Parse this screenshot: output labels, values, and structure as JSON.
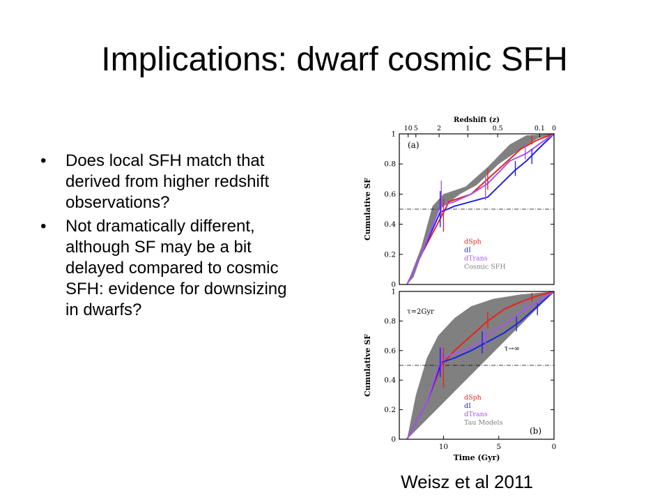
{
  "slide": {
    "title": "Implications: dwarf cosmic SFH",
    "bullet_symbol": "•",
    "bullets": [
      "Does local SFH match that derived from higher redshift observations?",
      "Not dramatically different, although SF may be a bit delayed compared to cosmic SFH: evidence for downsizing in dwarfs?"
    ],
    "caption": "Weisz et al 2011"
  },
  "chart_data": [
    {
      "type": "line",
      "panel_label": "(a)",
      "top_axis_label": "Redshift (z)",
      "top_ticks": [
        {
          "label": "10",
          "time": 13.2
        },
        {
          "label": "5",
          "time": 12.5
        },
        {
          "label": "2",
          "time": 10.4
        },
        {
          "label": "1",
          "time": 7.8
        },
        {
          "label": "0.5",
          "time": 5.1
        },
        {
          "label": "0.1",
          "time": 1.3
        },
        {
          "label": "0",
          "time": 0
        }
      ],
      "xlabel": "",
      "ylabel": "Cumulative SF",
      "xlim": [
        14,
        0
      ],
      "ylim": [
        0,
        1
      ],
      "yticks": [
        0,
        0.2,
        0.4,
        0.6,
        0.8,
        1
      ],
      "reference_line": 0.5,
      "band": {
        "name": "Cosmic SFH",
        "color": "#808080",
        "lower": [
          [
            13.3,
            0
          ],
          [
            12.7,
            0.05
          ],
          [
            11.5,
            0.3
          ],
          [
            10.5,
            0.49
          ],
          [
            8.5,
            0.6
          ],
          [
            7,
            0.66
          ],
          [
            5,
            0.8
          ],
          [
            3,
            0.9
          ],
          [
            1.5,
            0.97
          ],
          [
            0,
            1
          ]
        ],
        "upper": [
          [
            13.3,
            0
          ],
          [
            12,
            0.25
          ],
          [
            11,
            0.52
          ],
          [
            10,
            0.6
          ],
          [
            8,
            0.65
          ],
          [
            6,
            0.78
          ],
          [
            4,
            0.93
          ],
          [
            2.5,
            0.99
          ],
          [
            0,
            1
          ]
        ]
      },
      "series": [
        {
          "name": "dSph",
          "color": "#e8231c",
          "values": [
            [
              13.3,
              0
            ],
            [
              12,
              0.2
            ],
            [
              10.2,
              0.45
            ],
            [
              9.5,
              0.55
            ],
            [
              7.5,
              0.6
            ],
            [
              6,
              0.7
            ],
            [
              4.5,
              0.8
            ],
            [
              3,
              0.9
            ],
            [
              1.5,
              0.96
            ],
            [
              0,
              1
            ]
          ]
        },
        {
          "name": "dI",
          "color": "#1e22e8",
          "values": [
            [
              13.3,
              0
            ],
            [
              12,
              0.2
            ],
            [
              10.3,
              0.48
            ],
            [
              9,
              0.52
            ],
            [
              7.5,
              0.55
            ],
            [
              6,
              0.58
            ],
            [
              3.5,
              0.76
            ],
            [
              2.5,
              0.82
            ],
            [
              1,
              0.93
            ],
            [
              0,
              1
            ]
          ]
        },
        {
          "name": "dTrans",
          "color": "#a455f0",
          "values": [
            [
              13.3,
              0
            ],
            [
              12,
              0.2
            ],
            [
              10.3,
              0.52
            ],
            [
              9,
              0.55
            ],
            [
              7.5,
              0.6
            ],
            [
              6,
              0.67
            ],
            [
              4,
              0.82
            ],
            [
              2.5,
              0.87
            ],
            [
              1,
              0.95
            ],
            [
              0,
              1
            ]
          ]
        }
      ],
      "error_bars": [
        {
          "series": "dSph",
          "x": 10,
          "y": 0.45,
          "low": 0.35,
          "high": 0.57
        },
        {
          "series": "dSph",
          "x": 6,
          "y": 0.7,
          "low": 0.63,
          "high": 0.77
        },
        {
          "series": "dSph",
          "x": 2,
          "y": 0.96,
          "low": 0.93,
          "high": 0.99
        },
        {
          "series": "dI",
          "x": 10.3,
          "y": 0.5,
          "low": 0.38,
          "high": 0.62
        },
        {
          "series": "dI",
          "x": 3.5,
          "y": 0.76,
          "low": 0.72,
          "high": 0.82
        },
        {
          "series": "dI",
          "x": 2,
          "y": 0.85,
          "low": 0.8,
          "high": 0.9
        },
        {
          "series": "dTrans",
          "x": 10.2,
          "y": 0.55,
          "low": 0.45,
          "high": 0.69
        },
        {
          "series": "dTrans",
          "x": 6.2,
          "y": 0.63,
          "low": 0.56,
          "high": 0.72
        },
        {
          "series": "dTrans",
          "x": 2.6,
          "y": 0.88,
          "low": 0.83,
          "high": 0.93
        }
      ],
      "legend_position": "lower-right"
    },
    {
      "type": "line",
      "panel_label": "(b)",
      "xlabel": "Time (Gyr)",
      "ylabel": "Cumulative SF",
      "xlim": [
        14,
        0
      ],
      "ylim": [
        0,
        1
      ],
      "xticks": [
        10,
        5,
        0
      ],
      "yticks": [
        0,
        0.2,
        0.4,
        0.6,
        0.8,
        1
      ],
      "reference_line": 0.5,
      "annotations": [
        {
          "text": "τ=2Gyr",
          "x": 13.3,
          "y": 0.85
        },
        {
          "text": "τ→∞",
          "x": 4.5,
          "y": 0.6
        }
      ],
      "band": {
        "name": "Tau Models",
        "color": "#808080",
        "lower": [
          [
            13.3,
            0
          ],
          [
            0,
            1
          ]
        ],
        "upper": [
          [
            13.3,
            0
          ],
          [
            12.5,
            0.3
          ],
          [
            11.5,
            0.55
          ],
          [
            10.5,
            0.7
          ],
          [
            9,
            0.82
          ],
          [
            7.5,
            0.9
          ],
          [
            5.5,
            0.95
          ],
          [
            3,
            0.98
          ],
          [
            0,
            1
          ]
        ]
      },
      "series": [
        {
          "name": "dSph",
          "color": "#e8231c",
          "values": [
            [
              13.3,
              0
            ],
            [
              11.5,
              0.25
            ],
            [
              10.2,
              0.5
            ],
            [
              9,
              0.6
            ],
            [
              7.5,
              0.7
            ],
            [
              6,
              0.8
            ],
            [
              4.5,
              0.88
            ],
            [
              3,
              0.93
            ],
            [
              1.5,
              0.97
            ],
            [
              0,
              1
            ]
          ]
        },
        {
          "name": "dI",
          "color": "#1e22e8",
          "values": [
            [
              13.3,
              0
            ],
            [
              11.5,
              0.25
            ],
            [
              10.2,
              0.52
            ],
            [
              9,
              0.55
            ],
            [
              7.5,
              0.6
            ],
            [
              6,
              0.66
            ],
            [
              4.5,
              0.72
            ],
            [
              3,
              0.8
            ],
            [
              1.5,
              0.9
            ],
            [
              0,
              1
            ]
          ]
        },
        {
          "name": "dTrans",
          "color": "#a455f0",
          "values": [
            [
              13.3,
              0
            ],
            [
              11.5,
              0.25
            ],
            [
              10.2,
              0.55
            ],
            [
              9,
              0.58
            ],
            [
              7.5,
              0.62
            ],
            [
              6,
              0.7
            ],
            [
              4.5,
              0.78
            ],
            [
              3,
              0.86
            ],
            [
              1.5,
              0.93
            ],
            [
              0,
              1
            ]
          ]
        }
      ],
      "error_bars": [
        {
          "series": "dSph",
          "x": 10,
          "y": 0.5,
          "low": 0.35,
          "high": 0.62
        },
        {
          "series": "dSph",
          "x": 6,
          "y": 0.8,
          "low": 0.75,
          "high": 0.86
        },
        {
          "series": "dSph",
          "x": 2,
          "y": 0.96,
          "low": 0.93,
          "high": 0.99
        },
        {
          "series": "dI",
          "x": 10.3,
          "y": 0.52,
          "low": 0.42,
          "high": 0.62
        },
        {
          "series": "dI",
          "x": 6.5,
          "y": 0.65,
          "low": 0.58,
          "high": 0.73
        },
        {
          "series": "dI",
          "x": 3.4,
          "y": 0.78,
          "low": 0.73,
          "high": 0.83
        },
        {
          "series": "dI",
          "x": 1.5,
          "y": 0.88,
          "low": 0.84,
          "high": 0.92
        },
        {
          "series": "dTrans",
          "x": 10.2,
          "y": 0.55,
          "low": 0.47,
          "high": 0.63
        },
        {
          "series": "dTrans",
          "x": 6.2,
          "y": 0.68,
          "low": 0.6,
          "high": 0.76
        },
        {
          "series": "dTrans",
          "x": 2.6,
          "y": 0.9,
          "low": 0.86,
          "high": 0.94
        }
      ],
      "legend_position": "lower-right"
    }
  ]
}
